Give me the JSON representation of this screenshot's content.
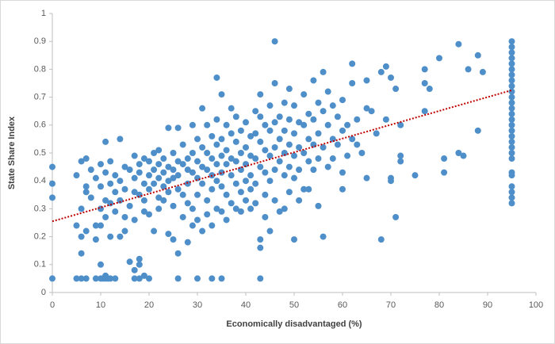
{
  "chart_data": {
    "type": "scatter",
    "x_label": "Economically disadvantaged (%)",
    "y_label": "State Share Index",
    "xlim": [
      0,
      100
    ],
    "ylim": [
      0,
      1
    ],
    "xticks": [
      0,
      10,
      20,
      30,
      40,
      50,
      60,
      70,
      80,
      90,
      100
    ],
    "yticks": [
      0,
      0.1,
      0.2,
      0.3,
      0.4,
      0.5,
      0.6,
      0.7,
      0.8,
      0.9,
      1
    ],
    "x": [
      0,
      0,
      0,
      0,
      95,
      95,
      95,
      95,
      95,
      95,
      95,
      95,
      95,
      95,
      95,
      95,
      95,
      95,
      95,
      95,
      95,
      95,
      95,
      95,
      95,
      95,
      95,
      95,
      95,
      95,
      95,
      95,
      5,
      6,
      7,
      9,
      10,
      10.5,
      11,
      11.5,
      12,
      13,
      17,
      18,
      20,
      26,
      30,
      33,
      35,
      43,
      5,
      5,
      6,
      6,
      6,
      6,
      7,
      7,
      7,
      7,
      8,
      8,
      9,
      9,
      9,
      10,
      10,
      10,
      10,
      10,
      11,
      11,
      11,
      11,
      11,
      12,
      12,
      12,
      12,
      13,
      13,
      13,
      14,
      14,
      14,
      14,
      15,
      15,
      15,
      15,
      16,
      16,
      16,
      17,
      17,
      17,
      17,
      17,
      18,
      18,
      18,
      18,
      18,
      19,
      19,
      19,
      19,
      19,
      20,
      20,
      20,
      20,
      21,
      21,
      21,
      21,
      22,
      22,
      22,
      22,
      22,
      23,
      23,
      23,
      23,
      24,
      24,
      24,
      24,
      24,
      25,
      25,
      25,
      25,
      25,
      26,
      26,
      26,
      26,
      26,
      27,
      27,
      27,
      27,
      28,
      28,
      28,
      28,
      28,
      29,
      29,
      29,
      29,
      29,
      30,
      30,
      30,
      30,
      30,
      31,
      31,
      31,
      31,
      31,
      32,
      32,
      32,
      32,
      32,
      33,
      33,
      33,
      33,
      33,
      34,
      34,
      34,
      34,
      34,
      34,
      35,
      35,
      35,
      35,
      35,
      35,
      36,
      36,
      36,
      36,
      36,
      37,
      37,
      37,
      37,
      37,
      38,
      38,
      38,
      38,
      38,
      39,
      39,
      39,
      39,
      39,
      40,
      40,
      40,
      40,
      40,
      41,
      41,
      41,
      41,
      41,
      42,
      42,
      42,
      42,
      42,
      43,
      43,
      43,
      43,
      43,
      43,
      44,
      44,
      44,
      44,
      44,
      45,
      45,
      45,
      45,
      45,
      46,
      46,
      46,
      46,
      46,
      46,
      47,
      47,
      47,
      47,
      48,
      48,
      48,
      48,
      48,
      49,
      49,
      49,
      49,
      49,
      50,
      50,
      50,
      50,
      50,
      51,
      51,
      51,
      51,
      52,
      52,
      52,
      52,
      53,
      53,
      53,
      53,
      54,
      54,
      54,
      54,
      55,
      55,
      55,
      55,
      56,
      56,
      56,
      56,
      57,
      57,
      57,
      58,
      58,
      58,
      59,
      59,
      60,
      60,
      60,
      60,
      61,
      61,
      62,
      62,
      62,
      63,
      63,
      64,
      65,
      65,
      65,
      66,
      67,
      68,
      68,
      69,
      69,
      70,
      70,
      70,
      71,
      71,
      72,
      72,
      72,
      75,
      77,
      77,
      77,
      78,
      80,
      81,
      81,
      84,
      84,
      85,
      86,
      88,
      88,
      89
    ],
    "series": [
      {
        "color": "#4f8fc9",
        "values": [
          0.05,
          0.34,
          0.39,
          0.45,
          0.32,
          0.34,
          0.36,
          0.38,
          0.42,
          0.43,
          0.48,
          0.5,
          0.52,
          0.54,
          0.56,
          0.58,
          0.6,
          0.62,
          0.64,
          0.66,
          0.68,
          0.7,
          0.72,
          0.74,
          0.76,
          0.78,
          0.8,
          0.82,
          0.84,
          0.86,
          0.88,
          0.9,
          0.05,
          0.05,
          0.05,
          0.05,
          0.05,
          0.05,
          0.05,
          0.05,
          0.05,
          0.05,
          0.05,
          0.05,
          0.05,
          0.05,
          0.05,
          0.05,
          0.05,
          0.05,
          0.24,
          0.42,
          0.47,
          0.3,
          0.14,
          0.2,
          0.48,
          0.38,
          0.36,
          0.22,
          0.44,
          0.34,
          0.41,
          0.19,
          0.24,
          0.46,
          0.38,
          0.3,
          0.1,
          0.24,
          0.54,
          0.43,
          0.33,
          0.27,
          0.06,
          0.47,
          0.39,
          0.32,
          0.2,
          0.42,
          0.36,
          0.29,
          0.55,
          0.4,
          0.33,
          0.2,
          0.45,
          0.37,
          0.27,
          0.22,
          0.44,
          0.11,
          0.31,
          0.49,
          0.41,
          0.36,
          0.26,
          0.08,
          0.46,
          0.43,
          0.35,
          0.12,
          0.1,
          0.48,
          0.39,
          0.33,
          0.29,
          0.06,
          0.47,
          0.42,
          0.37,
          0.28,
          0.5,
          0.44,
          0.39,
          0.22,
          0.51,
          0.46,
          0.41,
          0.34,
          0.3,
          0.48,
          0.43,
          0.38,
          0.33,
          0.59,
          0.45,
          0.4,
          0.36,
          0.21,
          0.5,
          0.44,
          0.41,
          0.31,
          0.19,
          0.59,
          0.47,
          0.42,
          0.37,
          0.14,
          0.53,
          0.46,
          0.35,
          0.27,
          0.48,
          0.44,
          0.39,
          0.32,
          0.18,
          0.6,
          0.5,
          0.43,
          0.3,
          0.24,
          0.55,
          0.47,
          0.41,
          0.35,
          0.26,
          0.66,
          0.52,
          0.45,
          0.39,
          0.22,
          0.6,
          0.5,
          0.44,
          0.33,
          0.28,
          0.56,
          0.48,
          0.42,
          0.37,
          0.24,
          0.77,
          0.62,
          0.53,
          0.46,
          0.4,
          0.3,
          0.71,
          0.55,
          0.49,
          0.43,
          0.38,
          0.29,
          0.6,
          0.51,
          0.46,
          0.35,
          0.26,
          0.66,
          0.57,
          0.48,
          0.42,
          0.32,
          0.63,
          0.54,
          0.47,
          0.39,
          0.3,
          0.58,
          0.5,
          0.44,
          0.36,
          0.29,
          0.61,
          0.52,
          0.46,
          0.4,
          0.33,
          0.56,
          0.49,
          0.42,
          0.37,
          0.3,
          0.65,
          0.57,
          0.48,
          0.39,
          0.32,
          0.71,
          0.63,
          0.54,
          0.45,
          0.19,
          0.16,
          0.6,
          0.51,
          0.43,
          0.35,
          0.27,
          0.67,
          0.58,
          0.49,
          0.4,
          0.22,
          0.9,
          0.75,
          0.61,
          0.52,
          0.44,
          0.33,
          0.63,
          0.55,
          0.47,
          0.29,
          0.68,
          0.58,
          0.5,
          0.42,
          0.3,
          0.73,
          0.62,
          0.53,
          0.45,
          0.36,
          0.67,
          0.57,
          0.49,
          0.41,
          0.19,
          0.61,
          0.52,
          0.44,
          0.33,
          0.71,
          0.6,
          0.5,
          0.37,
          0.64,
          0.55,
          0.47,
          0.37,
          0.76,
          0.62,
          0.53,
          0.44,
          0.68,
          0.57,
          0.48,
          0.31,
          0.79,
          0.65,
          0.52,
          0.2,
          0.72,
          0.6,
          0.45,
          0.67,
          0.55,
          0.48,
          0.63,
          0.53,
          0.69,
          0.58,
          0.43,
          0.37,
          0.6,
          0.49,
          0.82,
          0.75,
          0.55,
          0.62,
          0.53,
          0.5,
          0.76,
          0.66,
          0.41,
          0.65,
          0.57,
          0.79,
          0.19,
          0.81,
          0.62,
          0.77,
          0.41,
          0.4,
          0.73,
          0.27,
          0.6,
          0.49,
          0.47,
          0.42,
          0.8,
          0.75,
          0.65,
          0.73,
          0.84,
          0.48,
          0.43,
          0.89,
          0.5,
          0.49,
          0.8,
          0.85,
          0.58,
          0.79
        ]
      }
    ],
    "trendline": {
      "x": [
        0,
        95
      ],
      "values": [
        0.255,
        0.725
      ],
      "color": "#c00000"
    }
  }
}
